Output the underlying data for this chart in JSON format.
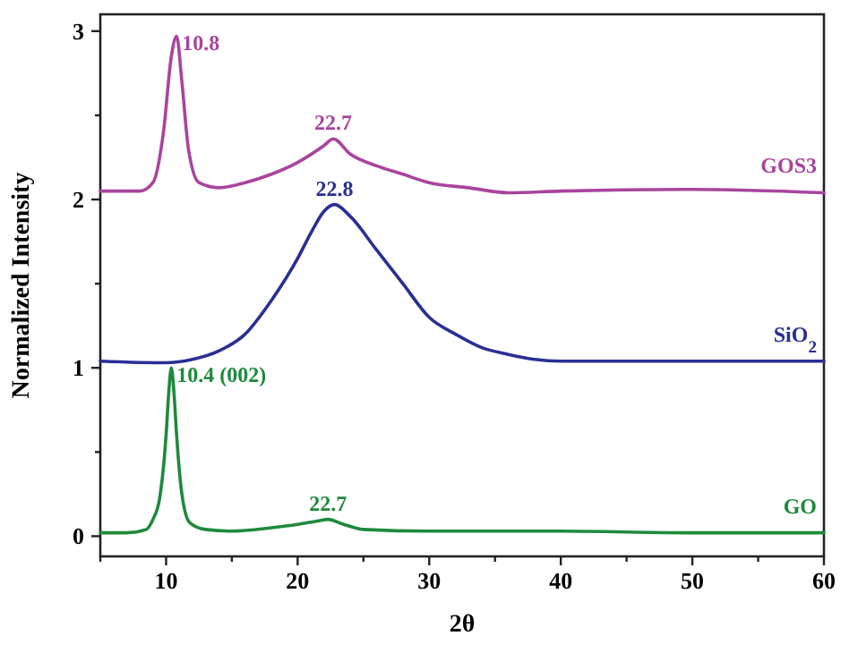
{
  "chart_data": {
    "type": "line",
    "xlabel": "2θ",
    "ylabel": "Normalized Intensity",
    "xlim": [
      5,
      60
    ],
    "ylim": [
      -0.12,
      3.1
    ],
    "xticks": [
      {
        "value": 5,
        "label": null
      },
      10,
      {
        "value": 15,
        "label": null
      },
      20,
      {
        "value": 25,
        "label": null
      },
      30,
      {
        "value": 35,
        "label": null
      },
      40,
      {
        "value": 45,
        "label": null
      },
      50,
      {
        "value": 55,
        "label": null
      },
      60
    ],
    "yticks": [
      0,
      {
        "value": 0.5,
        "label": null
      },
      1,
      {
        "value": 1.5,
        "label": null
      },
      2,
      {
        "value": 2.5,
        "label": null
      },
      3
    ],
    "grid": false,
    "marker": "none",
    "line_style": "solid",
    "series": [
      {
        "name": "GO",
        "color": "#1e8a3c",
        "x": [
          5,
          7,
          8.5,
          9,
          9.5,
          10,
          10.2,
          10.4,
          10.6,
          10.8,
          11.2,
          11.8,
          13,
          15,
          18,
          20,
          21.5,
          22.3,
          23.5,
          25,
          30,
          40,
          50,
          60
        ],
        "values": [
          0.02,
          0.02,
          0.04,
          0.1,
          0.22,
          0.6,
          0.85,
          1.0,
          0.85,
          0.6,
          0.25,
          0.08,
          0.04,
          0.03,
          0.05,
          0.07,
          0.09,
          0.1,
          0.07,
          0.04,
          0.03,
          0.03,
          0.02,
          0.02
        ]
      },
      {
        "name": "SiO$_{2}$",
        "color": "#2a2f94",
        "x": [
          5,
          10,
          12,
          14,
          16,
          18,
          20,
          21,
          22,
          22.8,
          24,
          26,
          28,
          30,
          32,
          34,
          36,
          38,
          40,
          50,
          60
        ],
        "values": [
          1.04,
          1.03,
          1.05,
          1.1,
          1.2,
          1.4,
          1.65,
          1.8,
          1.93,
          1.97,
          1.9,
          1.7,
          1.5,
          1.3,
          1.2,
          1.12,
          1.08,
          1.05,
          1.04,
          1.04,
          1.04
        ]
      },
      {
        "name": "GOS3",
        "color": "#a9449e",
        "x": [
          5,
          8,
          9,
          9.8,
          10.4,
          10.8,
          11.2,
          11.7,
          12.5,
          14,
          16,
          18,
          20,
          22,
          22.7,
          24,
          26,
          28,
          30,
          33,
          36,
          40,
          50,
          60
        ],
        "values": [
          2.05,
          2.05,
          2.1,
          2.4,
          2.85,
          2.97,
          2.7,
          2.3,
          2.1,
          2.07,
          2.1,
          2.15,
          2.22,
          2.32,
          2.36,
          2.27,
          2.2,
          2.15,
          2.1,
          2.07,
          2.04,
          2.05,
          2.06,
          2.04
        ]
      }
    ],
    "annotations": [
      {
        "text": "10.8",
        "x": 10.8,
        "y": 2.97
      },
      {
        "text": "22.7",
        "x": 22.7,
        "y": 2.36
      },
      {
        "text": "22.8",
        "x": 22.8,
        "y": 1.97
      },
      {
        "text": "10.4 (002)",
        "x": 10.4,
        "y": 1.0
      },
      {
        "text": "22.7",
        "x": 22.3,
        "y": 0.1
      }
    ]
  }
}
